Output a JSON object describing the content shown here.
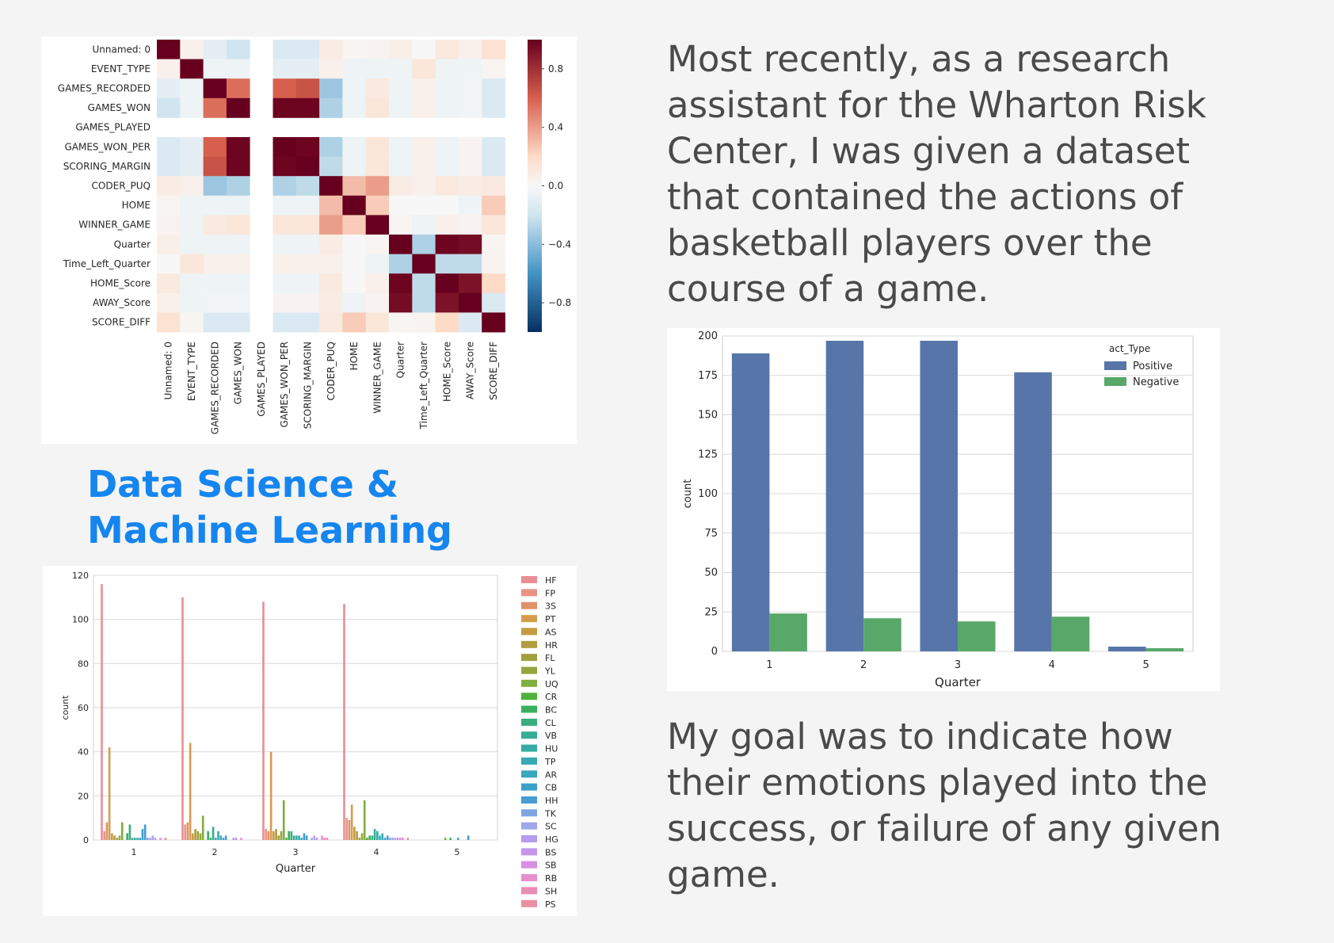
{
  "text": {
    "intro_lines": [
      "Most recently, as a research",
      "assistant for the Wharton Risk",
      "Center, I was given a dataset",
      "that contained the actions of",
      "basketball players over the",
      "course of a game."
    ],
    "section_title_lines": [
      "Data Science &",
      "Machine Learning"
    ],
    "goal_lines": [
      "My goal was to indicate how",
      "their emotions played into the",
      "success, or failure of any given",
      "game."
    ]
  },
  "chart_data": [
    {
      "type": "heatmap",
      "labels": [
        "Unnamed: 0",
        "EVENT_TYPE",
        "GAMES_RECORDED",
        "GAMES_WON",
        "GAMES_PLAYED",
        "GAMES_WON_PER",
        "SCORING_MARGIN",
        "CODER_PUQ",
        "HOME",
        "WINNER_GAME",
        "Quarter",
        "Time_Left_Quarter",
        "HOME_Score",
        "AWAY_Score",
        "SCORE_DIFF"
      ],
      "values": [
        [
          1.0,
          0.05,
          -0.1,
          -0.2,
          null,
          -0.15,
          -0.15,
          0.08,
          0.02,
          0.03,
          0.06,
          0.0,
          0.1,
          0.05,
          0.15
        ],
        [
          0.05,
          1.0,
          -0.05,
          -0.05,
          null,
          -0.1,
          -0.1,
          0.05,
          -0.05,
          -0.05,
          -0.05,
          0.12,
          -0.05,
          -0.05,
          0.02
        ],
        [
          -0.1,
          -0.05,
          1.0,
          0.55,
          null,
          0.6,
          0.65,
          -0.35,
          -0.05,
          0.1,
          -0.05,
          0.05,
          -0.05,
          -0.03,
          -0.15
        ],
        [
          -0.2,
          -0.05,
          0.55,
          1.0,
          null,
          0.98,
          0.98,
          -0.3,
          -0.05,
          0.12,
          -0.05,
          0.05,
          -0.05,
          -0.03,
          -0.15
        ],
        [
          null,
          null,
          null,
          null,
          null,
          null,
          null,
          null,
          null,
          null,
          null,
          null,
          null,
          null,
          null
        ],
        [
          -0.15,
          -0.1,
          0.6,
          0.98,
          null,
          1.0,
          0.98,
          -0.3,
          -0.05,
          0.12,
          -0.05,
          0.05,
          -0.05,
          0.03,
          -0.15
        ],
        [
          -0.15,
          -0.1,
          0.65,
          0.98,
          null,
          0.98,
          1.0,
          -0.25,
          -0.05,
          0.12,
          -0.05,
          0.05,
          -0.05,
          0.03,
          -0.15
        ],
        [
          0.08,
          0.05,
          -0.35,
          -0.3,
          null,
          -0.3,
          -0.25,
          1.0,
          0.3,
          0.4,
          0.08,
          0.05,
          0.1,
          0.08,
          0.1
        ],
        [
          0.02,
          -0.05,
          -0.05,
          -0.05,
          null,
          -0.05,
          -0.05,
          0.3,
          1.0,
          0.25,
          0.0,
          0.0,
          0.0,
          -0.05,
          0.25
        ],
        [
          0.03,
          -0.05,
          0.1,
          0.12,
          null,
          0.12,
          0.12,
          0.4,
          0.25,
          1.0,
          0.02,
          -0.05,
          0.05,
          0.03,
          0.12
        ],
        [
          0.06,
          -0.05,
          -0.05,
          -0.05,
          null,
          -0.05,
          -0.05,
          0.08,
          0.0,
          0.02,
          1.0,
          -0.3,
          0.98,
          0.95,
          0.02
        ],
        [
          0.0,
          0.12,
          0.05,
          0.05,
          null,
          0.05,
          0.05,
          0.05,
          0.0,
          -0.05,
          -0.3,
          1.0,
          -0.25,
          -0.25,
          0.03
        ],
        [
          0.1,
          -0.05,
          -0.05,
          -0.05,
          null,
          -0.05,
          -0.05,
          0.1,
          0.0,
          0.05,
          0.98,
          -0.25,
          1.0,
          0.92,
          0.2
        ],
        [
          0.05,
          -0.05,
          -0.03,
          -0.03,
          null,
          0.03,
          0.03,
          0.08,
          -0.05,
          0.03,
          0.95,
          -0.25,
          0.92,
          1.0,
          -0.15
        ],
        [
          0.15,
          0.02,
          -0.15,
          -0.15,
          null,
          -0.15,
          -0.15,
          0.1,
          0.25,
          0.12,
          0.02,
          0.03,
          0.2,
          -0.15,
          1.0
        ]
      ],
      "colorbar_ticks": [
        0.8,
        0.4,
        0.0,
        -0.4,
        -0.8
      ],
      "colorbar_tick_labels": [
        "0.8",
        "0.4",
        "0.0",
        "−0.4",
        "−0.8"
      ],
      "range": [
        -1,
        1
      ]
    },
    {
      "type": "bar",
      "xlabel": "Quarter",
      "ylabel": "count",
      "categories": [
        "1",
        "2",
        "3",
        "4",
        "5"
      ],
      "ylim": [
        0,
        120
      ],
      "yticks": [
        0,
        20,
        40,
        60,
        80,
        100,
        120
      ],
      "legend_position": "right",
      "series": [
        {
          "name": "HF",
          "color": "#ea8e95",
          "values": [
            116,
            110,
            108,
            107,
            0
          ]
        },
        {
          "name": "FP",
          "color": "#e99483",
          "values": [
            4,
            7,
            5,
            10,
            0
          ]
        },
        {
          "name": "3S",
          "color": "#e0926a",
          "values": [
            8,
            8,
            4,
            9,
            0
          ]
        },
        {
          "name": "PT",
          "color": "#d69c4e",
          "values": [
            42,
            44,
            40,
            16,
            0
          ]
        },
        {
          "name": "AS",
          "color": "#c49c40",
          "values": [
            3,
            3,
            4,
            6,
            0
          ]
        },
        {
          "name": "HR",
          "color": "#b09d3f",
          "values": [
            2,
            5,
            5,
            4,
            0
          ]
        },
        {
          "name": "FL",
          "color": "#a0a03e",
          "values": [
            1,
            4,
            2,
            1,
            0
          ]
        },
        {
          "name": "YL",
          "color": "#93a63d",
          "values": [
            2,
            3,
            4,
            3,
            0
          ]
        },
        {
          "name": "UQ",
          "color": "#7fae3d",
          "values": [
            8,
            11,
            18,
            18,
            1
          ]
        },
        {
          "name": "CR",
          "color": "#4fb23d",
          "values": [
            0,
            0,
            1,
            1,
            0
          ]
        },
        {
          "name": "BC",
          "color": "#3aaf5c",
          "values": [
            3,
            4,
            4,
            2,
            1
          ]
        },
        {
          "name": "CL",
          "color": "#39ad7d",
          "values": [
            7,
            1,
            4,
            2,
            0
          ]
        },
        {
          "name": "VB",
          "color": "#36ad95",
          "values": [
            1,
            6,
            2,
            5,
            0
          ]
        },
        {
          "name": "HU",
          "color": "#36aca5",
          "values": [
            1,
            1,
            2,
            4,
            1
          ]
        },
        {
          "name": "TP",
          "color": "#38aab3",
          "values": [
            1,
            4,
            2,
            2,
            0
          ]
        },
        {
          "name": "AR",
          "color": "#39a7be",
          "values": [
            1,
            2,
            1,
            3,
            0
          ]
        },
        {
          "name": "CB",
          "color": "#3aa2c8",
          "values": [
            5,
            1,
            3,
            1,
            0
          ]
        },
        {
          "name": "HH",
          "color": "#4a9ad6",
          "values": [
            7,
            2,
            2,
            2,
            2
          ]
        },
        {
          "name": "TK",
          "color": "#7da5e2",
          "values": [
            1,
            0,
            0,
            1,
            0
          ]
        },
        {
          "name": "SC",
          "color": "#9da7ea",
          "values": [
            1,
            0,
            1,
            1,
            0
          ]
        },
        {
          "name": "HG",
          "color": "#b39ded",
          "values": [
            2,
            1,
            2,
            1,
            0
          ]
        },
        {
          "name": "BS",
          "color": "#c495ea",
          "values": [
            1,
            1,
            1,
            1,
            0
          ]
        },
        {
          "name": "SB",
          "color": "#d98ee4",
          "values": [
            0,
            0,
            0,
            1,
            0
          ]
        },
        {
          "name": "RB",
          "color": "#e78fcb",
          "values": [
            1,
            1,
            2,
            1,
            0
          ]
        },
        {
          "name": "SH",
          "color": "#ea8db5",
          "values": [
            0,
            0,
            1,
            0,
            0
          ]
        },
        {
          "name": "PS",
          "color": "#ea8fa3",
          "values": [
            1,
            0,
            1,
            1,
            0
          ]
        }
      ]
    },
    {
      "type": "bar",
      "xlabel": "Quarter",
      "ylabel": "count",
      "categories": [
        "1",
        "2",
        "3",
        "4",
        "5"
      ],
      "ylim": [
        0,
        200
      ],
      "yticks": [
        0,
        25,
        50,
        75,
        100,
        125,
        150,
        175,
        200
      ],
      "legend_title": "act_Type",
      "legend_position": "top-right",
      "series": [
        {
          "name": "Positive",
          "color": "#5875a9",
          "values": [
            189,
            197,
            197,
            177,
            3
          ]
        },
        {
          "name": "Negative",
          "color": "#58a869",
          "values": [
            24,
            21,
            19,
            22,
            2
          ]
        }
      ]
    }
  ]
}
